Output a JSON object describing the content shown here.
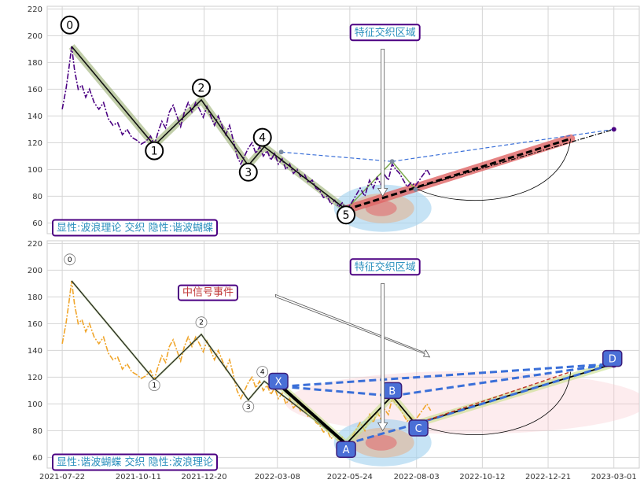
{
  "chart_data": [
    {
      "type": "line",
      "panel": "top",
      "ylim": [
        52,
        222
      ],
      "y_ticks": [
        "60",
        "80",
        "100",
        "120",
        "140",
        "160",
        "180",
        "200",
        "220"
      ],
      "x_ticks": [
        {
          "label": "2021-07-22",
          "date": "2021-07-22"
        },
        {
          "label": "2021-10-11",
          "date": "2021-10-11"
        },
        {
          "label": "2021-12-20",
          "date": "2021-12-20"
        },
        {
          "label": "2022-03-08",
          "date": "2022-03-08"
        },
        {
          "label": "2022-05-24",
          "date": "2022-05-24"
        },
        {
          "label": "2022-08-03",
          "date": "2022-08-03"
        },
        {
          "label": "2022-10-12",
          "date": "2022-10-12"
        },
        {
          "label": "2022-12-21",
          "date": "2022-12-21"
        },
        {
          "label": "2023-03-01",
          "date": "2023-03-01"
        }
      ],
      "xlim": [
        "2021-07-06",
        "2023-03-28"
      ],
      "price_series": [
        [
          "2021-07-22",
          145
        ],
        [
          "2021-07-26",
          160
        ],
        [
          "2021-07-29",
          175
        ],
        [
          "2021-08-01",
          192
        ],
        [
          "2021-08-04",
          175
        ],
        [
          "2021-08-08",
          160
        ],
        [
          "2021-08-12",
          163
        ],
        [
          "2021-08-16",
          154
        ],
        [
          "2021-08-20",
          160
        ],
        [
          "2021-08-25",
          150
        ],
        [
          "2021-08-30",
          145
        ],
        [
          "2021-09-04",
          150
        ],
        [
          "2021-09-09",
          138
        ],
        [
          "2021-09-14",
          133
        ],
        [
          "2021-09-19",
          135
        ],
        [
          "2021-09-24",
          126
        ],
        [
          "2021-09-29",
          130
        ],
        [
          "2021-10-04",
          124
        ],
        [
          "2021-10-09",
          122
        ],
        [
          "2021-10-14",
          119
        ],
        [
          "2021-10-19",
          121
        ],
        [
          "2021-10-24",
          125
        ],
        [
          "2021-10-28",
          118
        ],
        [
          "2021-11-01",
          128
        ],
        [
          "2021-11-05",
          136
        ],
        [
          "2021-11-09",
          131
        ],
        [
          "2021-11-13",
          143
        ],
        [
          "2021-11-17",
          148
        ],
        [
          "2021-11-21",
          140
        ],
        [
          "2021-11-25",
          132
        ],
        [
          "2021-11-29",
          143
        ],
        [
          "2021-12-03",
          150
        ],
        [
          "2021-12-07",
          143
        ],
        [
          "2021-12-11",
          150
        ],
        [
          "2021-12-15",
          145
        ],
        [
          "2021-12-19",
          139
        ],
        [
          "2021-12-23",
          147
        ],
        [
          "2021-12-27",
          140
        ],
        [
          "2021-12-31",
          133
        ],
        [
          "2022-01-04",
          140
        ],
        [
          "2022-01-08",
          133
        ],
        [
          "2022-01-12",
          126
        ],
        [
          "2022-01-16",
          133
        ],
        [
          "2022-01-20",
          122
        ],
        [
          "2022-01-24",
          110
        ],
        [
          "2022-01-28",
          104
        ],
        [
          "2022-02-01",
          110
        ],
        [
          "2022-02-05",
          116
        ],
        [
          "2022-02-09",
          120
        ],
        [
          "2022-02-13",
          112
        ],
        [
          "2022-02-17",
          117
        ],
        [
          "2022-02-21",
          110
        ],
        [
          "2022-02-25",
          114
        ],
        [
          "2022-03-01",
          107
        ],
        [
          "2022-03-05",
          112
        ],
        [
          "2022-03-09",
          104
        ],
        [
          "2022-03-13",
          108
        ],
        [
          "2022-03-17",
          100
        ],
        [
          "2022-03-21",
          104
        ],
        [
          "2022-03-25",
          97
        ],
        [
          "2022-03-29",
          100
        ],
        [
          "2022-04-02",
          94
        ],
        [
          "2022-04-06",
          96
        ],
        [
          "2022-04-10",
          90
        ],
        [
          "2022-04-14",
          92
        ],
        [
          "2022-04-18",
          86
        ],
        [
          "2022-04-22",
          84
        ],
        [
          "2022-04-26",
          79
        ],
        [
          "2022-04-30",
          80
        ],
        [
          "2022-05-04",
          74
        ],
        [
          "2022-05-08",
          77
        ],
        [
          "2022-05-12",
          72
        ],
        [
          "2022-05-16",
          75
        ],
        [
          "2022-05-20",
          70
        ],
        [
          "2022-05-25",
          74
        ],
        [
          "2022-05-30",
          80
        ],
        [
          "2022-06-04",
          86
        ],
        [
          "2022-06-09",
          80
        ],
        [
          "2022-06-14",
          92
        ],
        [
          "2022-06-18",
          86
        ],
        [
          "2022-06-22",
          94
        ],
        [
          "2022-06-26",
          89
        ],
        [
          "2022-06-30",
          96
        ],
        [
          "2022-07-04",
          92
        ],
        [
          "2022-07-08",
          104
        ],
        [
          "2022-07-12",
          100
        ],
        [
          "2022-07-16",
          97
        ],
        [
          "2022-07-20",
          92
        ],
        [
          "2022-07-24",
          87
        ],
        [
          "2022-07-28",
          90
        ],
        [
          "2022-08-02",
          88
        ],
        [
          "2022-08-06",
          92
        ],
        [
          "2022-08-10",
          96
        ],
        [
          "2022-08-14",
          100
        ],
        [
          "2022-08-18",
          95
        ]
      ],
      "wave_points": [
        {
          "label": "0",
          "date": "2021-08-01",
          "value": 192,
          "text_date": "2021-07-30",
          "text_value": 208
        },
        {
          "label": "1",
          "date": "2021-10-28",
          "value": 118,
          "text_date": "2021-10-28",
          "text_value": 114
        },
        {
          "label": "2",
          "date": "2021-12-17",
          "value": 152,
          "text_date": "2021-12-17",
          "text_value": 161
        },
        {
          "label": "3",
          "date": "2022-02-05",
          "value": 103,
          "text_date": "2022-02-05",
          "text_value": 98
        },
        {
          "label": "4",
          "date": "2022-02-22",
          "value": 117,
          "text_date": "2022-02-20",
          "text_value": 124
        },
        {
          "label": "5",
          "date": "2022-05-20",
          "value": 70,
          "text_date": "2022-05-20",
          "text_value": 66
        }
      ],
      "butterfly_points": [
        {
          "date": "2022-03-12",
          "value": 113
        },
        {
          "date": "2022-05-20",
          "value": 70
        },
        {
          "date": "2022-07-08",
          "value": 106
        },
        {
          "date": "2022-08-02",
          "value": 85
        },
        {
          "date": "2023-03-01",
          "value": 130
        }
      ],
      "annotation_boxes": [
        {
          "text": "特征交织区域",
          "date": "2022-06-28",
          "value": 203,
          "color": "#2a8fbd",
          "border": "#4b0082"
        },
        {
          "text": "显性:波浪理论 交织 隐性:谐波蝴蝶",
          "date": "2021-07-22",
          "value": 57,
          "color": "#2a8fbd",
          "border": "#4b0082"
        }
      ]
    },
    {
      "type": "line",
      "panel": "bottom",
      "ylim": [
        52,
        222
      ],
      "y_ticks": [
        "60",
        "80",
        "100",
        "120",
        "140",
        "160",
        "180",
        "200",
        "220"
      ],
      "x_ticks": [
        {
          "label": "2021-07-22",
          "date": "2021-07-22"
        },
        {
          "label": "2021-10-11",
          "date": "2021-10-11"
        },
        {
          "label": "2021-12-20",
          "date": "2021-12-20"
        },
        {
          "label": "2022-03-08",
          "date": "2022-03-08"
        },
        {
          "label": "2022-05-24",
          "date": "2022-05-24"
        },
        {
          "label": "2022-08-03",
          "date": "2022-08-03"
        },
        {
          "label": "2022-10-12",
          "date": "2022-10-12"
        },
        {
          "label": "2022-12-21",
          "date": "2022-12-21"
        },
        {
          "label": "2023-03-01",
          "date": "2023-03-01"
        }
      ],
      "xlim": [
        "2021-07-06",
        "2023-03-28"
      ],
      "wave_points": [
        {
          "label": "0",
          "date": "2021-08-01",
          "value": 192,
          "text_date": "2021-07-30",
          "text_value": 208
        },
        {
          "label": "1",
          "date": "2021-10-28",
          "value": 118,
          "text_date": "2021-10-28",
          "text_value": 114
        },
        {
          "label": "2",
          "date": "2021-12-17",
          "value": 152,
          "text_date": "2021-12-17",
          "text_value": 161
        },
        {
          "label": "3",
          "date": "2022-02-05",
          "value": 103,
          "text_date": "2022-02-05",
          "text_value": 98
        },
        {
          "label": "4",
          "date": "2022-02-22",
          "value": 117,
          "text_date": "2022-02-20",
          "text_value": 124
        }
      ],
      "butterfly_points": [
        {
          "label": "X",
          "date": "2022-03-12",
          "value": 113,
          "text_date": "2022-03-09",
          "text_value": 117
        },
        {
          "label": "A",
          "date": "2022-05-20",
          "value": 70,
          "text_date": "2022-05-20",
          "text_value": 66
        },
        {
          "label": "B",
          "date": "2022-07-08",
          "value": 106,
          "text_date": "2022-07-08",
          "text_value": 110
        },
        {
          "label": "C",
          "date": "2022-08-02",
          "value": 85,
          "text_date": "2022-08-05",
          "text_value": 82
        },
        {
          "label": "D",
          "date": "2023-03-01",
          "value": 130,
          "text_date": "2022-03-01",
          "text_value": 134
        }
      ],
      "annotation_boxes": [
        {
          "text": "特征交织区域",
          "date": "2022-06-28",
          "value": 203,
          "color": "#2a8fbd",
          "border": "#4b0082"
        },
        {
          "text": "中信号事件",
          "date": "2021-12-27",
          "value": 184,
          "color": "#c23a3a",
          "border": "#4b0082"
        },
        {
          "text": "显性:谐波蝴蝶 交织 隐性:波浪理论",
          "date": "2021-07-22",
          "value": 57,
          "color": "#2a8fbd",
          "border": "#4b0082"
        }
      ]
    }
  ],
  "colors": {
    "top_price": "#4b0082",
    "bottom_price": "#f0a52a",
    "wave_highlight": "#8fa865",
    "butterfly_blue": "#3a6fd8",
    "forecast_red": "#e06666",
    "box_border": "#4b0082"
  }
}
